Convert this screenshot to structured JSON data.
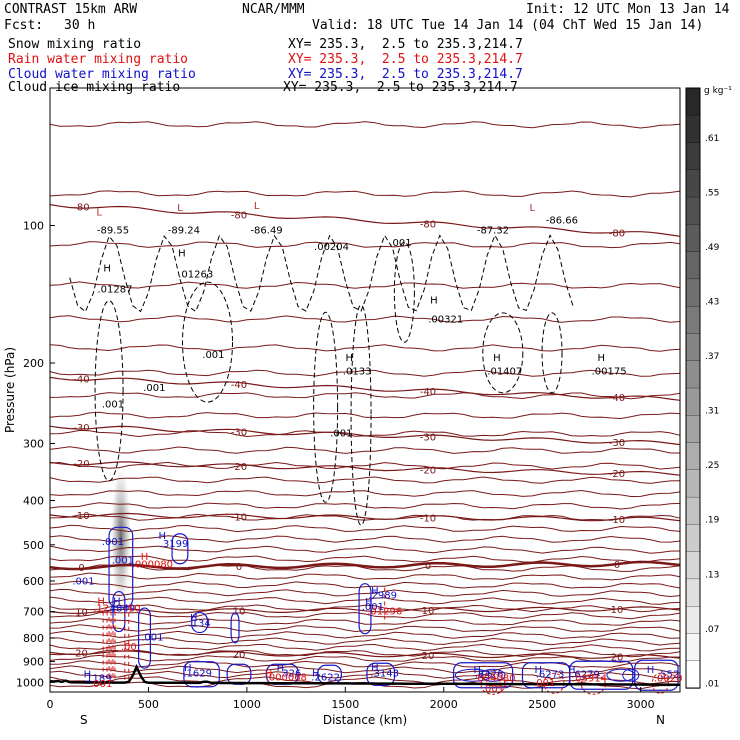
{
  "header": {
    "model": "CONTRAST 15km ARW",
    "fcst_label": "Fcst:",
    "fcst_value": "30 h",
    "center": "NCAR/MMM",
    "init": "Init: 12 UTC Mon 13 Jan 14",
    "valid": "Valid: 18 UTC Tue 14 Jan 14 (04 ChT Wed 15 Jan 14)"
  },
  "fields": [
    {
      "name": "Snow mixing ratio",
      "xy": "XY= 235.3,  2.5 to 235.3,214.7",
      "color": "#000000"
    },
    {
      "name": "Rain water mixing ratio",
      "xy": "XY= 235.3,  2.5 to 235.3,214.7",
      "color": "#e01010"
    },
    {
      "name": "Cloud water mixing ratio",
      "xy": "XY= 235.3,  2.5 to 235.3,214.7",
      "color": "#1010c8"
    },
    {
      "name": "Cloud ice mixing ratio",
      "xy": "XY= 235.3,  2.5 to 235.3,214.7",
      "color": "#000000"
    }
  ],
  "chart_data": {
    "type": "contour-cross-section",
    "xlabel": "Distance (km)",
    "ylabel": "Pressure (hPa)",
    "xlim": [
      0,
      3200
    ],
    "ylim": [
      1050,
      50
    ],
    "y_scale": "log",
    "xticks": [
      0,
      500,
      1000,
      1500,
      2000,
      2500,
      3000
    ],
    "yticks": [
      100,
      200,
      300,
      400,
      500,
      600,
      700,
      800,
      900,
      1000
    ],
    "x_end_labels": {
      "left": "S",
      "right": "N"
    },
    "temperature_contours": [
      {
        "value": 20,
        "label": "20",
        "p_at_x0": 860,
        "p_at_x3200": 880
      },
      {
        "value": 10,
        "label": "10",
        "p_at_x0": 700,
        "p_at_x3200": 690
      },
      {
        "value": 0,
        "label": "0",
        "p_at_x0": 560,
        "p_at_x3200": 550
      },
      {
        "value": -10,
        "label": "-10",
        "p_at_x0": 430,
        "p_at_x3200": 440
      },
      {
        "value": -20,
        "label": "-20",
        "p_at_x0": 330,
        "p_at_x3200": 350
      },
      {
        "value": -30,
        "label": "-30",
        "p_at_x0": 275,
        "p_at_x3200": 300
      },
      {
        "value": -40,
        "label": "-40",
        "p_at_x0": 215,
        "p_at_x3200": 240
      },
      {
        "value": -80,
        "label": "-80",
        "p_at_x0": 90,
        "p_at_x3200": 105
      }
    ],
    "point_labels": [
      {
        "text": "L",
        "x": 250,
        "p": 95,
        "color": "#b03030"
      },
      {
        "text": "-89.55",
        "x": 320,
        "p": 104,
        "color": "#000000"
      },
      {
        "text": "L",
        "x": 660,
        "p": 93,
        "color": "#b03030"
      },
      {
        "text": "-89.24",
        "x": 680,
        "p": 104,
        "color": "#000000"
      },
      {
        "text": "L",
        "x": 1050,
        "p": 92,
        "color": "#b03030"
      },
      {
        "text": "-86.49",
        "x": 1100,
        "p": 104,
        "color": "#000000"
      },
      {
        "text": "L",
        "x": 2450,
        "p": 93,
        "color": "#b03030"
      },
      {
        "text": "-87.32",
        "x": 2250,
        "p": 104,
        "color": "#000000"
      },
      {
        "text": "-86.66",
        "x": 2600,
        "p": 99,
        "color": "#000000"
      },
      {
        "text": ".00204",
        "x": 1430,
        "p": 113,
        "color": "#000000"
      },
      {
        "text": ".001",
        "x": 1780,
        "p": 111,
        "color": "#000000"
      },
      {
        "text": "H",
        "x": 290,
        "p": 126,
        "color": "#000000"
      },
      {
        "text": ".01287",
        "x": 330,
        "p": 140,
        "color": "#000000"
      },
      {
        "text": "H",
        "x": 670,
        "p": 117,
        "color": "#000000"
      },
      {
        "text": ".01263",
        "x": 740,
        "p": 130,
        "color": "#000000"
      },
      {
        "text": "H",
        "x": 1950,
        "p": 148,
        "color": "#000000"
      },
      {
        "text": ".00321",
        "x": 2010,
        "p": 163,
        "color": "#000000"
      },
      {
        "text": ".001",
        "x": 830,
        "p": 195,
        "color": "#000000"
      },
      {
        "text": ".001",
        "x": 530,
        "p": 230,
        "color": "#000000"
      },
      {
        "text": ".001",
        "x": 320,
        "p": 250,
        "color": "#000000"
      },
      {
        "text": "H",
        "x": 1520,
        "p": 198,
        "color": "#000000"
      },
      {
        "text": ".0133",
        "x": 1560,
        "p": 212,
        "color": "#000000"
      },
      {
        "text": ".001",
        "x": 1480,
        "p": 290,
        "color": "#000000"
      },
      {
        "text": "H",
        "x": 2270,
        "p": 198,
        "color": "#000000"
      },
      {
        "text": ".01407",
        "x": 2310,
        "p": 212,
        "color": "#000000"
      },
      {
        "text": "H",
        "x": 2800,
        "p": 198,
        "color": "#000000"
      },
      {
        "text": ".00175",
        "x": 2840,
        "p": 212,
        "color": "#000000"
      },
      {
        "text": ".001",
        "x": 320,
        "p": 500,
        "color": "#1010c8"
      },
      {
        "text": "H",
        "x": 570,
        "p": 485,
        "color": "#1010c8"
      },
      {
        "text": ".3199",
        "x": 630,
        "p": 505,
        "color": "#1010c8"
      },
      {
        "text": ".001",
        "x": 370,
        "p": 550,
        "color": "#1010c8"
      },
      {
        "text": "H",
        "x": 480,
        "p": 540,
        "color": "#e01010"
      },
      {
        "text": ".000080",
        "x": 520,
        "p": 560,
        "color": "#e01010"
      },
      {
        "text": ".001",
        "x": 170,
        "p": 610,
        "color": "#1010c8"
      },
      {
        "text": "H",
        "x": 1650,
        "p": 640,
        "color": "#1010c8"
      },
      {
        "text": ".2989",
        "x": 1690,
        "p": 655,
        "color": "#1010c8"
      },
      {
        "text": "H",
        "x": 1620,
        "p": 677,
        "color": "#1010c8"
      },
      {
        "text": ".001",
        "x": 1640,
        "p": 695,
        "color": "#1010c8"
      },
      {
        "text": ".01296",
        "x": 1700,
        "p": 710,
        "color": "#e01010"
      },
      {
        "text": "H",
        "x": 260,
        "p": 675,
        "color": "#e01010"
      },
      {
        "text": "H",
        "x": 340,
        "p": 675,
        "color": "#1010c8"
      },
      {
        "text": ".12",
        "x": 260,
        "p": 700,
        "color": "#e01010"
      },
      {
        "text": ".4849",
        "x": 360,
        "p": 700,
        "color": "#1010c8"
      },
      {
        "text": ".10",
        "x": 420,
        "p": 700,
        "color": "#e01010"
      },
      {
        "text": "H",
        "x": 730,
        "p": 735,
        "color": "#1010c8"
      },
      {
        "text": ".134",
        "x": 760,
        "p": 755,
        "color": "#1010c8"
      },
      {
        "text": ".001",
        "x": 520,
        "p": 810,
        "color": "#1010c8"
      },
      {
        "text": ".00",
        "x": 400,
        "p": 850,
        "color": "#e01010"
      },
      {
        "text": "H",
        "x": 190,
        "p": 975,
        "color": "#1010c8"
      },
      {
        "text": ".1189",
        "x": 240,
        "p": 995,
        "color": "#1010c8"
      },
      {
        "text": ".001",
        "x": 260,
        "p": 1025,
        "color": "#e01010"
      },
      {
        "text": "H",
        "x": 700,
        "p": 945,
        "color": "#1010c8"
      },
      {
        "text": ".1629",
        "x": 750,
        "p": 970,
        "color": "#1010c8"
      },
      {
        "text": "H",
        "x": 1170,
        "p": 945,
        "color": "#1010c8"
      },
      {
        "text": ".326",
        "x": 1220,
        "p": 970,
        "color": "#1010c8"
      },
      {
        "text": "H",
        "x": 1110,
        "p": 970,
        "color": "#e01010"
      },
      {
        "text": ".000068",
        "x": 1200,
        "p": 990,
        "color": "#e01010"
      },
      {
        "text": "H",
        "x": 1350,
        "p": 970,
        "color": "#1010c8"
      },
      {
        "text": ".2622",
        "x": 1400,
        "p": 990,
        "color": "#1010c8"
      },
      {
        "text": "H",
        "x": 1650,
        "p": 945,
        "color": "#1010c8"
      },
      {
        "text": ".3143",
        "x": 1700,
        "p": 970,
        "color": "#1010c8"
      },
      {
        "text": "H",
        "x": 2170,
        "p": 955,
        "color": "#1010c8"
      },
      {
        "text": ".6426",
        "x": 2230,
        "p": 975,
        "color": "#1010c8"
      },
      {
        "text": ".004080",
        "x": 2260,
        "p": 995,
        "color": "#e01010"
      },
      {
        "text": ".001",
        "x": 2250,
        "p": 1050,
        "color": "#e01010"
      },
      {
        "text": "H",
        "x": 2480,
        "p": 955,
        "color": "#1010c8"
      },
      {
        "text": ".6273",
        "x": 2540,
        "p": 975,
        "color": "#1010c8"
      },
      {
        "text": ".001",
        "x": 2510,
        "p": 1020,
        "color": "#e01010"
      },
      {
        "text": "H",
        "x": 2650,
        "p": 955,
        "color": "#1010c8"
      },
      {
        "text": ".6279",
        "x": 2720,
        "p": 975,
        "color": "#1010c8"
      },
      {
        "text": ".03914",
        "x": 2740,
        "p": 995,
        "color": "#e01010"
      },
      {
        "text": "H",
        "x": 3050,
        "p": 955,
        "color": "#1010c8"
      },
      {
        "text": ".552",
        "x": 3140,
        "p": 975,
        "color": "#1010c8"
      },
      {
        "text": ".0020",
        "x": 3140,
        "p": 995,
        "color": "#e01010"
      }
    ]
  },
  "colorbar": {
    "unit": "g kg⁻¹",
    "labels": [
      ".61",
      ".55",
      ".49",
      ".43",
      ".37",
      ".31",
      ".25",
      ".19",
      ".13",
      ".07",
      ".01"
    ]
  }
}
